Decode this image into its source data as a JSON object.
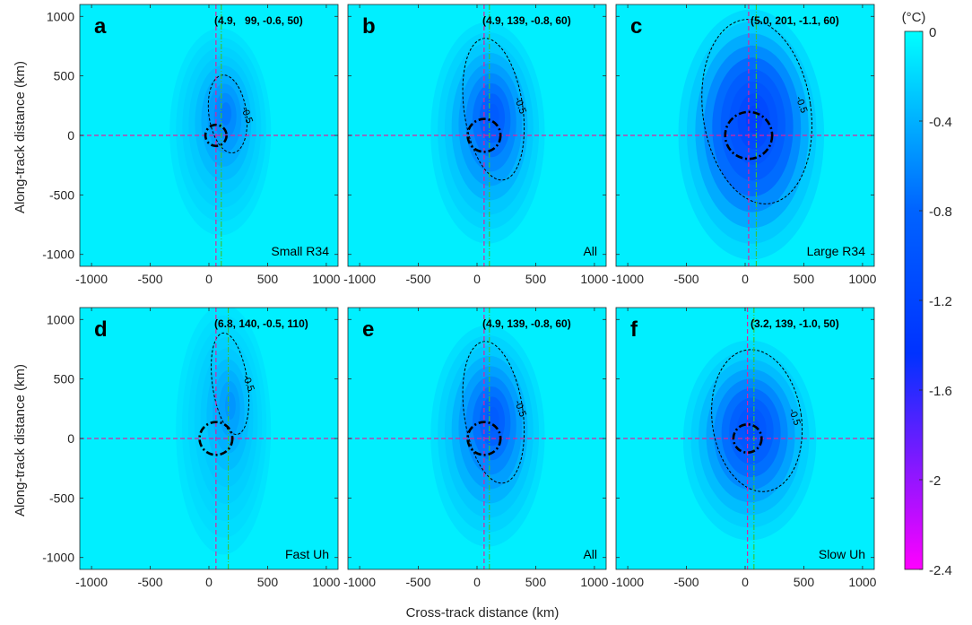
{
  "figure": {
    "xlabel": "Cross-track distance (km)",
    "ylabel": "Along-track distance (km)",
    "colorbar": {
      "unit_label": "(°C)",
      "min": -2.4,
      "max": 0,
      "tick_values": [
        0,
        -0.4,
        -0.8,
        -1.2,
        -1.6,
        -2,
        -2.4
      ],
      "tick_labels": [
        "0",
        "-0.4",
        "-0.8",
        "-1.2",
        "-1.6",
        "-2",
        "-2.4"
      ],
      "colors": [
        "#00ffff",
        "#0064ff",
        "#ff00ff"
      ]
    }
  },
  "chart_data": [
    {
      "type": "heatmap",
      "panel_letter": "a",
      "annotation": "(4.9,   99, -0.6, 50)",
      "label": "Small R34",
      "contour_label": "-0.5",
      "xlim": [
        -1100,
        1100
      ],
      "ylim": [
        -1100,
        1100
      ],
      "xticks": [
        -1000,
        -500,
        0,
        500,
        1000
      ],
      "yticks": [
        1000,
        500,
        0,
        -500,
        -1000
      ],
      "x_tick_labels": [
        "-1000",
        "-500",
        "0",
        "500",
        "1000"
      ],
      "y_tick_labels": [
        "1000",
        "500",
        "0",
        "-500",
        "-1000"
      ],
      "center_x": 60,
      "center_y": 0,
      "track_x": 105,
      "min_value": -0.7,
      "cold_center": [
        150,
        200
      ],
      "spread": [
        320,
        580
      ],
      "contour_center": [
        160,
        180
      ],
      "contour_radii": [
        160,
        330
      ],
      "radius_circle_km": 90
    },
    {
      "type": "heatmap",
      "panel_letter": "b",
      "annotation": "(4.9, 139, -0.8, 60)",
      "label": "All",
      "contour_label": "-0.5",
      "xlim": [
        -1100,
        1100
      ],
      "ylim": [
        -1100,
        1100
      ],
      "xticks": [
        -1000,
        -500,
        0,
        500,
        1000
      ],
      "yticks": [
        1000,
        500,
        0,
        -500,
        -1000
      ],
      "x_tick_labels": [
        "-1000",
        "-500",
        "0",
        "500",
        "1000"
      ],
      "y_tick_labels": [
        "1000",
        "500",
        "0",
        "-500",
        "-1000"
      ],
      "center_x": 60,
      "center_y": 0,
      "track_x": 105,
      "min_value": -0.9,
      "cold_center": [
        140,
        180
      ],
      "spread": [
        360,
        620
      ],
      "contour_center": [
        140,
        220
      ],
      "contour_radii": [
        250,
        600
      ],
      "radius_circle_km": 140
    },
    {
      "type": "heatmap",
      "panel_letter": "c",
      "annotation": "(5.0, 201, -1.1, 60)",
      "label": "Large R34",
      "contour_label": "-0.5",
      "xlim": [
        -1100,
        1100
      ],
      "ylim": [
        -1100,
        1100
      ],
      "xticks": [
        -1000,
        -500,
        0,
        500,
        1000
      ],
      "yticks": [
        1000,
        500,
        0,
        -500,
        -1000
      ],
      "x_tick_labels": [
        "-1000",
        "-500",
        "0",
        "500",
        "1000"
      ],
      "y_tick_labels": [
        "1000",
        "500",
        "0",
        "-500",
        "-1000"
      ],
      "center_x": 30,
      "center_y": 0,
      "track_x": 95,
      "min_value": -1.25,
      "cold_center": [
        80,
        150
      ],
      "spread": [
        460,
        700
      ],
      "contour_center": [
        100,
        200
      ],
      "contour_radii": [
        460,
        780
      ],
      "radius_circle_km": 200
    },
    {
      "type": "heatmap",
      "panel_letter": "d",
      "annotation": "(6.8, 140, -0.5, 110)",
      "label": "Fast Uh",
      "contour_label": "-0.5",
      "xlim": [
        -1100,
        1100
      ],
      "ylim": [
        -1100,
        1100
      ],
      "xticks": [
        -1000,
        -500,
        0,
        500,
        1000
      ],
      "yticks": [
        1000,
        500,
        0,
        -500,
        -1000
      ],
      "x_tick_labels": [
        "-1000",
        "-500",
        "0",
        "500",
        "1000"
      ],
      "y_tick_labels": [
        "1000",
        "500",
        "0",
        "-500",
        "-1000"
      ],
      "center_x": 60,
      "center_y": 0,
      "track_x": 165,
      "min_value": -0.6,
      "cold_center": [
        190,
        300
      ],
      "spread": [
        300,
        700
      ],
      "contour_center": [
        180,
        460
      ],
      "contour_radii": [
        150,
        430
      ],
      "radius_circle_km": 140
    },
    {
      "type": "heatmap",
      "panel_letter": "e",
      "annotation": "(4.9, 139, -0.8, 60)",
      "label": "All",
      "contour_label": "-0.5",
      "xlim": [
        -1100,
        1100
      ],
      "ylim": [
        -1100,
        1100
      ],
      "xticks": [
        -1000,
        -500,
        0,
        500,
        1000
      ],
      "yticks": [
        1000,
        500,
        0,
        -500,
        -1000
      ],
      "x_tick_labels": [
        "-1000",
        "-500",
        "0",
        "500",
        "1000"
      ],
      "y_tick_labels": [
        "1000",
        "500",
        "0",
        "-500",
        "-1000"
      ],
      "center_x": 60,
      "center_y": 0,
      "track_x": 105,
      "min_value": -0.9,
      "cold_center": [
        140,
        180
      ],
      "spread": [
        360,
        620
      ],
      "contour_center": [
        140,
        220
      ],
      "contour_radii": [
        250,
        600
      ],
      "radius_circle_km": 140
    },
    {
      "type": "heatmap",
      "panel_letter": "f",
      "annotation": "(3.2, 139, -1.0, 50)",
      "label": "Slow Uh",
      "contour_label": "-0.5",
      "xlim": [
        -1100,
        1100
      ],
      "ylim": [
        -1100,
        1100
      ],
      "xticks": [
        -1000,
        -500,
        0,
        500,
        1000
      ],
      "yticks": [
        1000,
        500,
        0,
        -500,
        -1000
      ],
      "x_tick_labels": [
        "-1000",
        "-500",
        "0",
        "500",
        "1000"
      ],
      "y_tick_labels": [
        "1000",
        "500",
        "0",
        "-500",
        "-1000"
      ],
      "center_x": 20,
      "center_y": 0,
      "track_x": 75,
      "min_value": -1.05,
      "cold_center": [
        60,
        100
      ],
      "spread": [
        420,
        560
      ],
      "contour_center": [
        100,
        150
      ],
      "contour_radii": [
        380,
        600
      ],
      "radius_circle_km": 120
    }
  ]
}
